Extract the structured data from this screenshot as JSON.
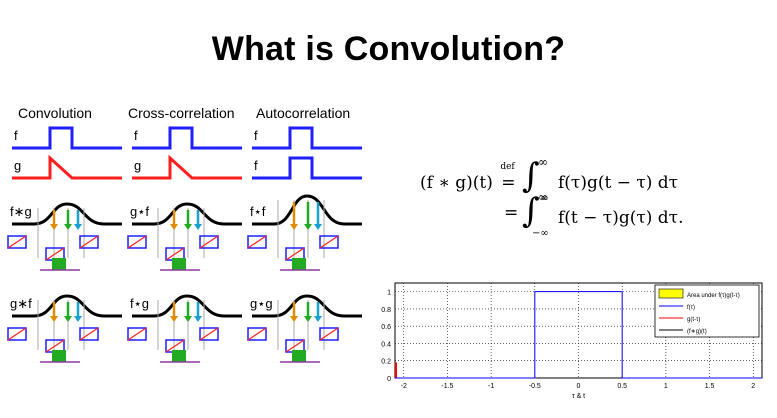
{
  "title": "What is Convolution?",
  "column_headers": [
    "Convolution",
    "Cross-correlation",
    "Autocorrelation"
  ],
  "row_labels": {
    "f": "f",
    "g": "g",
    "conv_fg": "f∗g",
    "cross_gf": "g⋆f",
    "auto_ff": "f⋆f",
    "conv_gf": "g∗f",
    "cross_fg": "f⋆g",
    "auto_gg": "g⋆g"
  },
  "equation": {
    "lhs": "(f ∗ g)(t)",
    "def_symbol": "def",
    "line1_integrand": "f(τ)g(t − τ) dτ",
    "line2_integrand": "f(t − τ)g(τ) dτ.",
    "upper_limit": "∞",
    "lower_limit": "−∞"
  },
  "colors": {
    "f": "#1f1fff",
    "g": "#ff1f1f",
    "result": "#000000",
    "area": "#ffff00",
    "orange": "#e08a00",
    "green": "#22aa22",
    "cyan": "#1aa0d0"
  },
  "chart_data": {
    "type": "line",
    "xlabel": "τ & t",
    "xlim": [
      -2.1,
      2.1
    ],
    "ylim": [
      0,
      1.1
    ],
    "x_ticks": [
      "-2",
      "-1.5",
      "-1",
      "-0.5",
      "0",
      "0.5",
      "1",
      "1.5",
      "2"
    ],
    "x_tick_values": [
      -2,
      -1.5,
      -1,
      -0.5,
      0,
      0.5,
      1,
      1.5,
      2
    ],
    "y_ticks": [
      "0",
      "0.2",
      "0.4",
      "0.6",
      "0.8",
      "1"
    ],
    "y_tick_values": [
      0,
      0.2,
      0.4,
      0.6,
      0.8,
      1
    ],
    "grid": true,
    "legend_position": "top-right",
    "legend": [
      "Area under f(τ)g(t-τ)",
      "f(τ)",
      "g(t-τ)",
      "(f∗g)(t)"
    ],
    "series": [
      {
        "name": "f(τ)",
        "color": "#0000ff",
        "x": [
          -2.1,
          -0.5,
          -0.5,
          0.5,
          0.5,
          2.1
        ],
        "y": [
          0,
          0,
          1,
          1,
          0,
          0
        ]
      }
    ]
  }
}
